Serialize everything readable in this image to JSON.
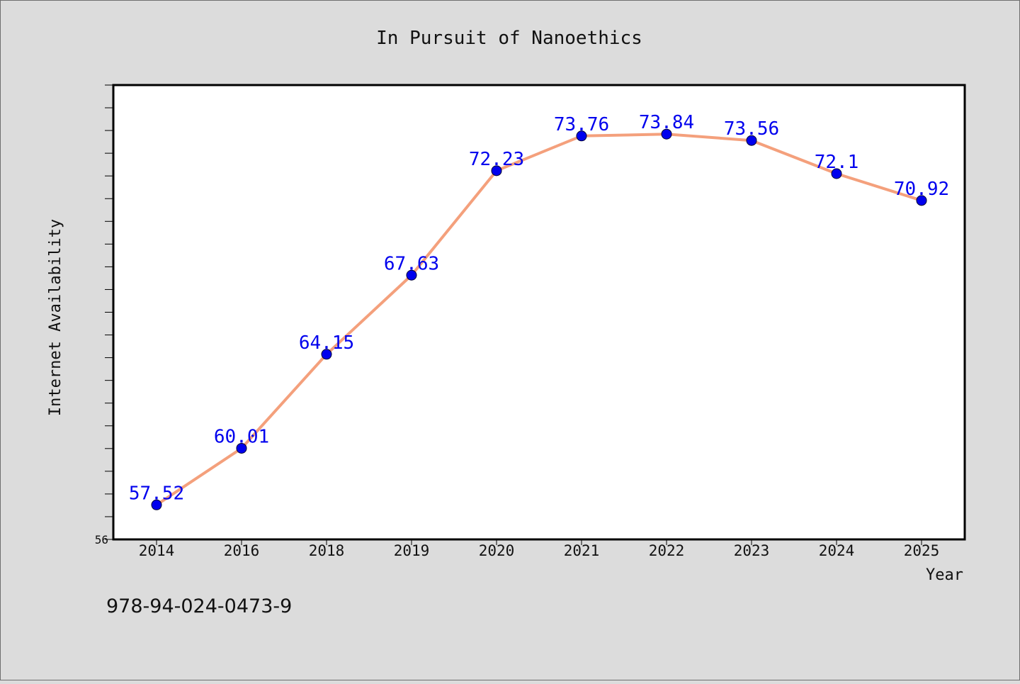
{
  "chart_data": {
    "type": "line",
    "title": "In Pursuit of Nanoethics",
    "xlabel": "Year",
    "ylabel": "Internet Availability",
    "categories": [
      "2014",
      "2016",
      "2018",
      "2019",
      "2020",
      "2021",
      "2022",
      "2023",
      "2024",
      "2025"
    ],
    "series": [
      {
        "values": [
          57.52,
          60.01,
          64.15,
          67.63,
          72.23,
          73.76,
          73.84,
          73.56,
          72.1,
          70.92
        ],
        "line_color": "#f4a07c",
        "marker_color": "#0000ee"
      }
    ],
    "data_labels": [
      "57.52",
      "60.01",
      "64.15",
      "67.63",
      "72.23",
      "73.76",
      "73.84",
      "73.56",
      "72.1",
      "70.92"
    ],
    "ylim": [
      56,
      76
    ],
    "y_min_label": "56",
    "grid": false,
    "legend": "none"
  },
  "footer": {
    "isbn": "978-94-024-0473-9"
  }
}
